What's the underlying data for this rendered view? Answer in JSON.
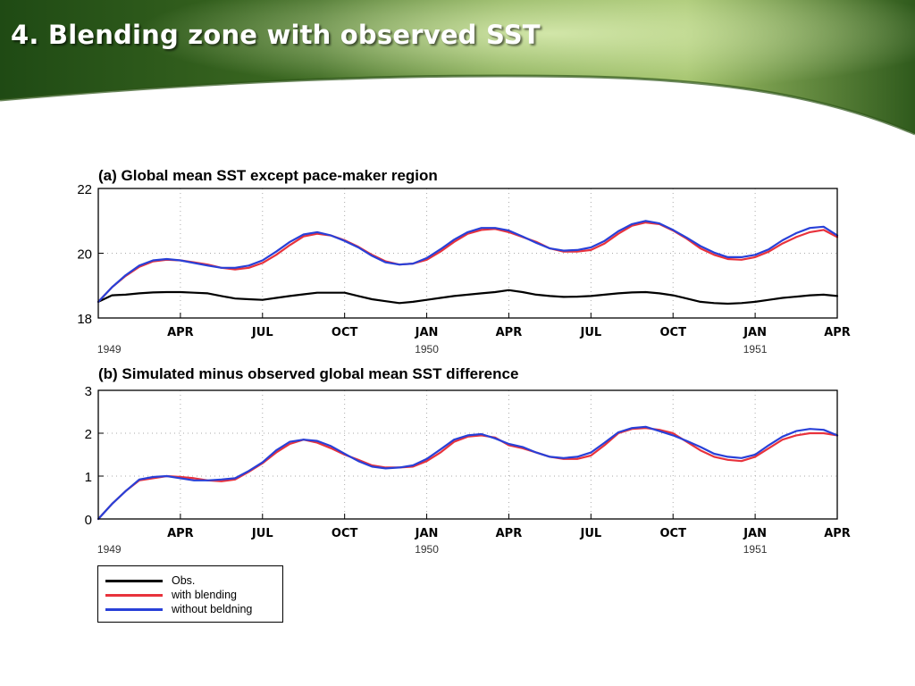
{
  "slide": {
    "title": "4. Blending zone with observed SST"
  },
  "colors": {
    "obs": "#000000",
    "with_blending": "#e8323c",
    "without_blending": "#2840d8"
  },
  "legend": [
    {
      "label": "Obs.",
      "color": "#000000"
    },
    {
      "label": "with blending",
      "color": "#e8323c"
    },
    {
      "label": "without beldning",
      "color": "#2840d8"
    }
  ],
  "chart_data": [
    {
      "type": "line",
      "title": "(a) Global mean SST except pace-maker region",
      "xlim": [
        0,
        27
      ],
      "ylim": [
        18,
        22
      ],
      "yticks": [
        18,
        20,
        22
      ],
      "xticks": [
        {
          "x": 3,
          "label": "APR"
        },
        {
          "x": 6,
          "label": "JUL"
        },
        {
          "x": 9,
          "label": "OCT"
        },
        {
          "x": 12,
          "label": "JAN"
        },
        {
          "x": 15,
          "label": "APR"
        },
        {
          "x": 18,
          "label": "JUL"
        },
        {
          "x": 21,
          "label": "OCT"
        },
        {
          "x": 24,
          "label": "JAN"
        },
        {
          "x": 27,
          "label": "APR"
        }
      ],
      "year_labels": [
        {
          "x": 0.4,
          "label": "1949"
        },
        {
          "x": 12,
          "label": "1950"
        },
        {
          "x": 24,
          "label": "1951"
        }
      ],
      "grid": true,
      "x": [
        0,
        0.5,
        1,
        1.5,
        2,
        2.5,
        3,
        3.5,
        4,
        4.5,
        5,
        5.5,
        6,
        6.5,
        7,
        7.5,
        8,
        8.5,
        9,
        9.5,
        10,
        10.5,
        11,
        11.5,
        12,
        12.5,
        13,
        13.5,
        14,
        14.5,
        15,
        15.5,
        16,
        16.5,
        17,
        17.5,
        18,
        18.5,
        19,
        19.5,
        20,
        20.5,
        21,
        21.5,
        22,
        22.5,
        23,
        23.5,
        24,
        24.5,
        25,
        25.5,
        26,
        26.5,
        27
      ],
      "series": [
        {
          "name": "Obs.",
          "color": "#000000",
          "values": [
            18.5,
            18.7,
            18.72,
            18.76,
            18.79,
            18.8,
            18.8,
            18.78,
            18.76,
            18.68,
            18.6,
            18.58,
            18.56,
            18.62,
            18.68,
            18.73,
            18.78,
            18.78,
            18.78,
            18.68,
            18.58,
            18.52,
            18.46,
            18.5,
            18.56,
            18.62,
            18.68,
            18.72,
            18.76,
            18.8,
            18.86,
            18.8,
            18.72,
            18.68,
            18.65,
            18.66,
            18.68,
            18.72,
            18.76,
            18.79,
            18.8,
            18.76,
            18.7,
            18.6,
            18.5,
            18.46,
            18.44,
            18.46,
            18.5,
            18.56,
            18.62,
            18.66,
            18.7,
            18.72,
            18.68
          ]
        },
        {
          "name": "with blending",
          "color": "#e8323c",
          "values": [
            18.5,
            18.95,
            19.3,
            19.58,
            19.75,
            19.8,
            19.78,
            19.72,
            19.65,
            19.55,
            19.5,
            19.55,
            19.7,
            19.95,
            20.25,
            20.52,
            20.6,
            20.55,
            20.4,
            20.2,
            19.95,
            19.75,
            19.65,
            19.68,
            19.8,
            20.05,
            20.35,
            20.6,
            20.72,
            20.75,
            20.65,
            20.5,
            20.35,
            20.15,
            20.05,
            20.05,
            20.1,
            20.3,
            20.6,
            20.85,
            20.95,
            20.9,
            20.7,
            20.45,
            20.15,
            19.95,
            19.82,
            19.8,
            19.88,
            20.05,
            20.3,
            20.5,
            20.65,
            20.72,
            20.5
          ]
        },
        {
          "name": "without beldning",
          "color": "#2840d8",
          "values": [
            18.5,
            18.95,
            19.32,
            19.62,
            19.78,
            19.82,
            19.78,
            19.7,
            19.62,
            19.55,
            19.55,
            19.62,
            19.78,
            20.05,
            20.35,
            20.58,
            20.65,
            20.55,
            20.38,
            20.18,
            19.92,
            19.72,
            19.65,
            19.68,
            19.85,
            20.12,
            20.42,
            20.65,
            20.78,
            20.78,
            20.7,
            20.52,
            20.32,
            20.15,
            20.08,
            20.1,
            20.18,
            20.38,
            20.68,
            20.9,
            21.0,
            20.92,
            20.72,
            20.48,
            20.22,
            20.02,
            19.88,
            19.88,
            19.95,
            20.12,
            20.4,
            20.62,
            20.78,
            20.82,
            20.55
          ]
        }
      ]
    },
    {
      "type": "line",
      "title": "(b) Simulated minus observed global mean SST difference",
      "xlim": [
        0,
        27
      ],
      "ylim": [
        0,
        3
      ],
      "yticks": [
        0,
        1,
        2,
        3
      ],
      "xticks": [
        {
          "x": 3,
          "label": "APR"
        },
        {
          "x": 6,
          "label": "JUL"
        },
        {
          "x": 9,
          "label": "OCT"
        },
        {
          "x": 12,
          "label": "JAN"
        },
        {
          "x": 15,
          "label": "APR"
        },
        {
          "x": 18,
          "label": "JUL"
        },
        {
          "x": 21,
          "label": "OCT"
        },
        {
          "x": 24,
          "label": "JAN"
        },
        {
          "x": 27,
          "label": "APR"
        }
      ],
      "year_labels": [
        {
          "x": 0.4,
          "label": "1949"
        },
        {
          "x": 12,
          "label": "1950"
        },
        {
          "x": 24,
          "label": "1951"
        }
      ],
      "grid": true,
      "x": [
        0,
        0.5,
        1,
        1.5,
        2,
        2.5,
        3,
        3.5,
        4,
        4.5,
        5,
        5.5,
        6,
        6.5,
        7,
        7.5,
        8,
        8.5,
        9,
        9.5,
        10,
        10.5,
        11,
        11.5,
        12,
        12.5,
        13,
        13.5,
        14,
        14.5,
        15,
        15.5,
        16,
        16.5,
        17,
        17.5,
        18,
        18.5,
        19,
        19.5,
        20,
        20.5,
        21,
        21.5,
        22,
        22.5,
        23,
        23.5,
        24,
        24.5,
        25,
        25.5,
        26,
        26.5,
        27
      ],
      "series": [
        {
          "name": "with blending",
          "color": "#e8323c",
          "values": [
            0.0,
            0.35,
            0.65,
            0.9,
            0.95,
            1.0,
            0.98,
            0.95,
            0.9,
            0.88,
            0.92,
            1.1,
            1.3,
            1.55,
            1.75,
            1.85,
            1.78,
            1.65,
            1.5,
            1.38,
            1.25,
            1.2,
            1.2,
            1.22,
            1.35,
            1.55,
            1.8,
            1.92,
            1.95,
            1.9,
            1.72,
            1.65,
            1.55,
            1.45,
            1.4,
            1.4,
            1.48,
            1.72,
            2.0,
            2.1,
            2.12,
            2.08,
            2.0,
            1.8,
            1.6,
            1.45,
            1.38,
            1.35,
            1.45,
            1.65,
            1.85,
            1.95,
            2.0,
            2.0,
            1.95
          ]
        },
        {
          "name": "without beldning",
          "color": "#2840d8",
          "values": [
            0.0,
            0.35,
            0.65,
            0.92,
            0.98,
            1.0,
            0.95,
            0.9,
            0.9,
            0.92,
            0.95,
            1.12,
            1.32,
            1.6,
            1.8,
            1.85,
            1.82,
            1.7,
            1.52,
            1.35,
            1.22,
            1.18,
            1.2,
            1.25,
            1.4,
            1.62,
            1.85,
            1.95,
            1.98,
            1.88,
            1.75,
            1.68,
            1.55,
            1.45,
            1.42,
            1.45,
            1.55,
            1.78,
            2.02,
            2.12,
            2.15,
            2.05,
            1.95,
            1.82,
            1.68,
            1.52,
            1.45,
            1.42,
            1.5,
            1.72,
            1.92,
            2.05,
            2.1,
            2.08,
            1.95
          ]
        }
      ]
    }
  ]
}
